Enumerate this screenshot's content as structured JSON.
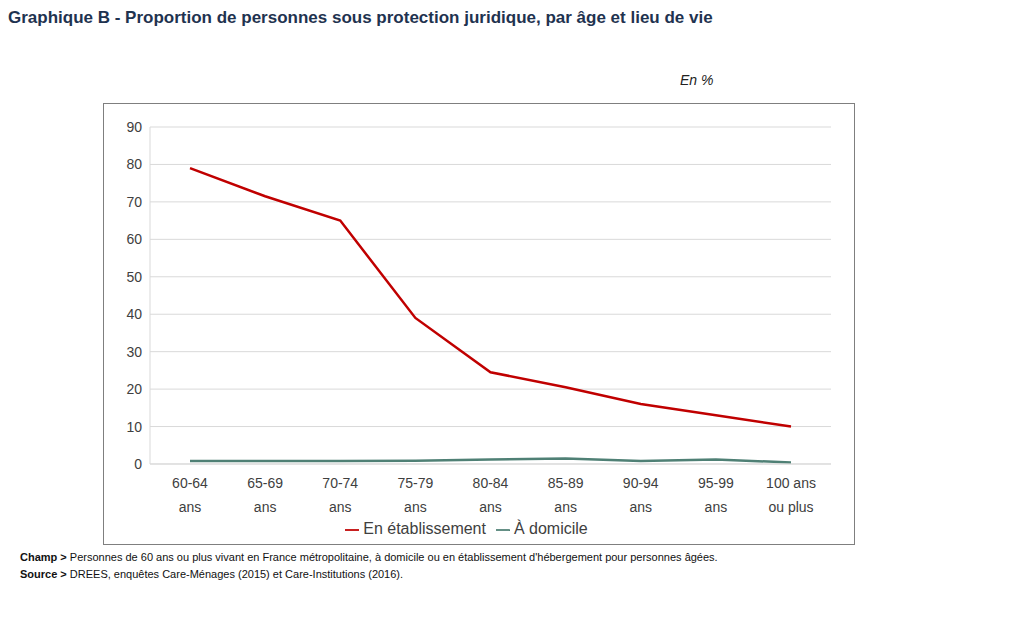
{
  "chart_data": {
    "type": "line",
    "title": "Graphique B - Proportion de personnes sous protection juridique, par âge et lieu de vie",
    "unit_label": "En %",
    "categories": [
      "60-64 ans",
      "65-69 ans",
      "70-74 ans",
      "75-79 ans",
      "80-84 ans",
      "85-89 ans",
      "90-94 ans",
      "95-99 ans",
      "100 ans ou plus"
    ],
    "series": [
      {
        "name": "En établissement",
        "color": "#c00000",
        "values": [
          79,
          71.5,
          65,
          39,
          24.5,
          20.5,
          16,
          13,
          10
        ]
      },
      {
        "name": "À domicile",
        "color": "#4f8075",
        "values": [
          0.8,
          0.8,
          0.8,
          0.9,
          1.2,
          1.5,
          0.8,
          1.2,
          0.4
        ]
      }
    ],
    "ylim": [
      0,
      90
    ],
    "yticks": [
      0,
      10,
      20,
      30,
      40,
      50,
      60,
      70,
      80,
      90
    ],
    "grid": true,
    "legend": "bottom",
    "notes": [
      {
        "label": "Champ >",
        "text": "Personnes de 60 ans ou plus vivant en France métropolitaine, à domicile ou en établissement d'hébergement pour personnes âgées."
      },
      {
        "label": "Source >",
        "text": "DREES, enquêtes Care-Ménages (2015) et Care-Institutions (2016)."
      }
    ]
  }
}
